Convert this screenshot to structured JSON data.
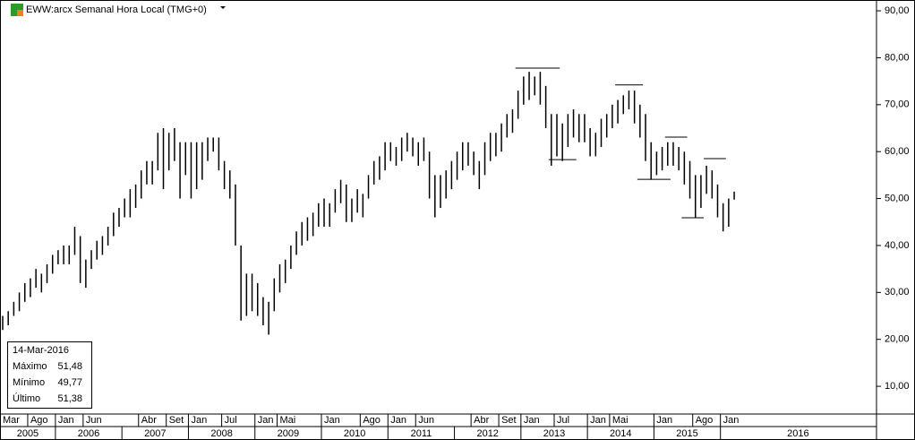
{
  "chart_data": {
    "type": "ohlc",
    "title": "EWW:arcx Semanal Hora Local (TMG+0)",
    "color": "#000000",
    "x": [
      "2005-03",
      "2005-04",
      "2005-05",
      "2005-06",
      "2005-07",
      "2005-08",
      "2005-09",
      "2005-10",
      "2005-11",
      "2005-12",
      "2006-01",
      "2006-02",
      "2006-03",
      "2006-04",
      "2006-05",
      "2006-06",
      "2006-07",
      "2006-08",
      "2006-09",
      "2006-10",
      "2006-11",
      "2006-12",
      "2007-01",
      "2007-02",
      "2007-03",
      "2007-04",
      "2007-05",
      "2007-06",
      "2007-07",
      "2007-08",
      "2007-09",
      "2007-10",
      "2007-11",
      "2007-12",
      "2008-01",
      "2008-02",
      "2008-03",
      "2008-04",
      "2008-05",
      "2008-06",
      "2008-07",
      "2008-08",
      "2008-09",
      "2008-10",
      "2008-11",
      "2008-12",
      "2009-01",
      "2009-02",
      "2009-03",
      "2009-04",
      "2009-05",
      "2009-06",
      "2009-07",
      "2009-08",
      "2009-09",
      "2009-10",
      "2009-11",
      "2009-12",
      "2010-01",
      "2010-02",
      "2010-03",
      "2010-04",
      "2010-05",
      "2010-06",
      "2010-07",
      "2010-08",
      "2010-09",
      "2010-10",
      "2010-11",
      "2010-12",
      "2011-01",
      "2011-02",
      "2011-03",
      "2011-04",
      "2011-05",
      "2011-06",
      "2011-07",
      "2011-08",
      "2011-09",
      "2011-10",
      "2011-11",
      "2011-12",
      "2012-01",
      "2012-02",
      "2012-03",
      "2012-04",
      "2012-05",
      "2012-06",
      "2012-07",
      "2012-08",
      "2012-09",
      "2012-10",
      "2012-11",
      "2012-12",
      "2013-01",
      "2013-02",
      "2013-03",
      "2013-04",
      "2013-05",
      "2013-06",
      "2013-07",
      "2013-08",
      "2013-09",
      "2013-10",
      "2013-11",
      "2013-12",
      "2014-01",
      "2014-02",
      "2014-03",
      "2014-04",
      "2014-05",
      "2014-06",
      "2014-07",
      "2014-08",
      "2014-09",
      "2014-10",
      "2014-11",
      "2014-12",
      "2015-01",
      "2015-02",
      "2015-03",
      "2015-04",
      "2015-05",
      "2015-06",
      "2015-07",
      "2015-08",
      "2015-09",
      "2015-10",
      "2015-11",
      "2015-12",
      "2016-01",
      "2016-02",
      "2016-03"
    ],
    "high": [
      25,
      26,
      28,
      30,
      32,
      33,
      35,
      34,
      36,
      38,
      39,
      40,
      40,
      44,
      42,
      37,
      39,
      41,
      42,
      44,
      47,
      48,
      50,
      52,
      53,
      56,
      58,
      58,
      64,
      65,
      64,
      65,
      62,
      62,
      62,
      62,
      62,
      63,
      63,
      63,
      58,
      56,
      53,
      40,
      34,
      34,
      32,
      29,
      28,
      33,
      36,
      37,
      40,
      43,
      45,
      46,
      47,
      49,
      50,
      49,
      52,
      54,
      53,
      50,
      52,
      51,
      55,
      58,
      59,
      62,
      62,
      61,
      63,
      64,
      63,
      62,
      63,
      60,
      55,
      55,
      56,
      58,
      60,
      62,
      62,
      60,
      58,
      62,
      64,
      64,
      66,
      68,
      69,
      73,
      76,
      77,
      76,
      77,
      74,
      68,
      68,
      66,
      68,
      69,
      68,
      68,
      65,
      64,
      67,
      68,
      70,
      71,
      72,
      73,
      73,
      70,
      68,
      62,
      60,
      61,
      62,
      62,
      61,
      60,
      58,
      55,
      55,
      57,
      56,
      53,
      49,
      50,
      51.48
    ],
    "low": [
      22,
      23,
      25,
      26,
      28,
      29,
      31,
      30,
      32,
      34,
      36,
      36,
      36,
      38,
      32,
      31,
      35,
      37,
      38,
      40,
      42,
      44,
      46,
      46,
      48,
      50,
      53,
      53,
      56,
      52,
      56,
      58,
      50,
      55,
      50,
      52,
      54,
      58,
      60,
      56,
      52,
      50,
      40,
      24,
      25,
      26,
      25,
      23,
      21,
      26,
      30,
      32,
      35,
      38,
      40,
      41,
      42,
      44,
      44,
      44,
      47,
      49,
      45,
      45,
      47,
      46,
      50,
      53,
      54,
      56,
      58,
      57,
      58,
      60,
      59,
      57,
      58,
      50,
      46,
      48,
      50,
      52,
      54,
      56,
      57,
      55,
      52,
      55,
      58,
      59,
      60,
      63,
      64,
      67,
      70,
      71,
      72,
      70,
      65,
      57,
      59,
      58,
      61,
      63,
      62,
      62,
      59,
      59,
      61,
      63,
      65,
      66,
      68,
      69,
      66,
      63,
      58,
      54,
      55,
      56,
      57,
      57,
      56,
      53,
      50,
      46,
      48,
      51,
      50,
      46,
      43,
      44,
      49.77
    ],
    "xlim": [
      "2005-03",
      "2018-05"
    ],
    "ylim": [
      4.1,
      92.3
    ],
    "yticks": [
      {
        "value": 10,
        "label": "10,00"
      },
      {
        "value": 20,
        "label": "20,00"
      },
      {
        "value": 30,
        "label": "30,00"
      },
      {
        "value": 40,
        "label": "40,00"
      },
      {
        "value": 50,
        "label": "50,00"
      },
      {
        "value": 60,
        "label": "60,00"
      },
      {
        "value": 70,
        "label": "70,00"
      },
      {
        "value": 80,
        "label": "80,00"
      },
      {
        "value": 90,
        "label": "90,00"
      }
    ],
    "month_ticks": [
      {
        "value": "2005-03",
        "label": "Mar"
      },
      {
        "value": "2005-08",
        "label": "Ago"
      },
      {
        "value": "2006-01",
        "label": "Jan"
      },
      {
        "value": "2006-06",
        "label": "Jun"
      },
      {
        "value": "2007-04",
        "label": "Abr"
      },
      {
        "value": "2007-09",
        "label": "Set"
      },
      {
        "value": "2008-01",
        "label": "Jan"
      },
      {
        "value": "2008-07",
        "label": "Jul"
      },
      {
        "value": "2009-01",
        "label": "Jan"
      },
      {
        "value": "2009-05",
        "label": "Mai"
      },
      {
        "value": "2010-01",
        "label": "Jan"
      },
      {
        "value": "2010-08",
        "label": "Ago"
      },
      {
        "value": "2011-01",
        "label": "Jan"
      },
      {
        "value": "2011-06",
        "label": "Jun"
      },
      {
        "value": "2012-04",
        "label": "Abr"
      },
      {
        "value": "2012-09",
        "label": "Set"
      },
      {
        "value": "2013-01",
        "label": "Jan"
      },
      {
        "value": "2013-07",
        "label": "Jul"
      },
      {
        "value": "2014-01",
        "label": "Jan"
      },
      {
        "value": "2014-05",
        "label": "Mai"
      },
      {
        "value": "2015-01",
        "label": "Jan"
      },
      {
        "value": "2015-08",
        "label": "Ago"
      },
      {
        "value": "2016-01",
        "label": "Jan"
      }
    ],
    "year_ticks": [
      "2005",
      "2006",
      "2007",
      "2008",
      "2009",
      "2010",
      "2011",
      "2012",
      "2013",
      "2014",
      "2015",
      "2016"
    ],
    "annotation_lines": [
      {
        "x": [
          "2012-12",
          "2013-08"
        ],
        "y": 77.8
      },
      {
        "x": [
          "2013-06",
          "2013-11"
        ],
        "y": 58.3
      },
      {
        "x": [
          "2014-06",
          "2014-11"
        ],
        "y": 74.2
      },
      {
        "x": [
          "2014-10",
          "2015-04"
        ],
        "y": 54.1
      },
      {
        "x": [
          "2015-03",
          "2015-07"
        ],
        "y": 63.1
      },
      {
        "x": [
          "2015-06",
          "2015-10"
        ],
        "y": 45.9
      },
      {
        "x": [
          "2015-10",
          "2016-02"
        ],
        "y": 58.5
      }
    ],
    "info": {
      "date": "14-Mar-2016",
      "rows": [
        [
          "Máximo",
          "51,48"
        ],
        [
          "Mínimo",
          "49,77"
        ],
        [
          "Último",
          "51,38"
        ]
      ]
    }
  }
}
